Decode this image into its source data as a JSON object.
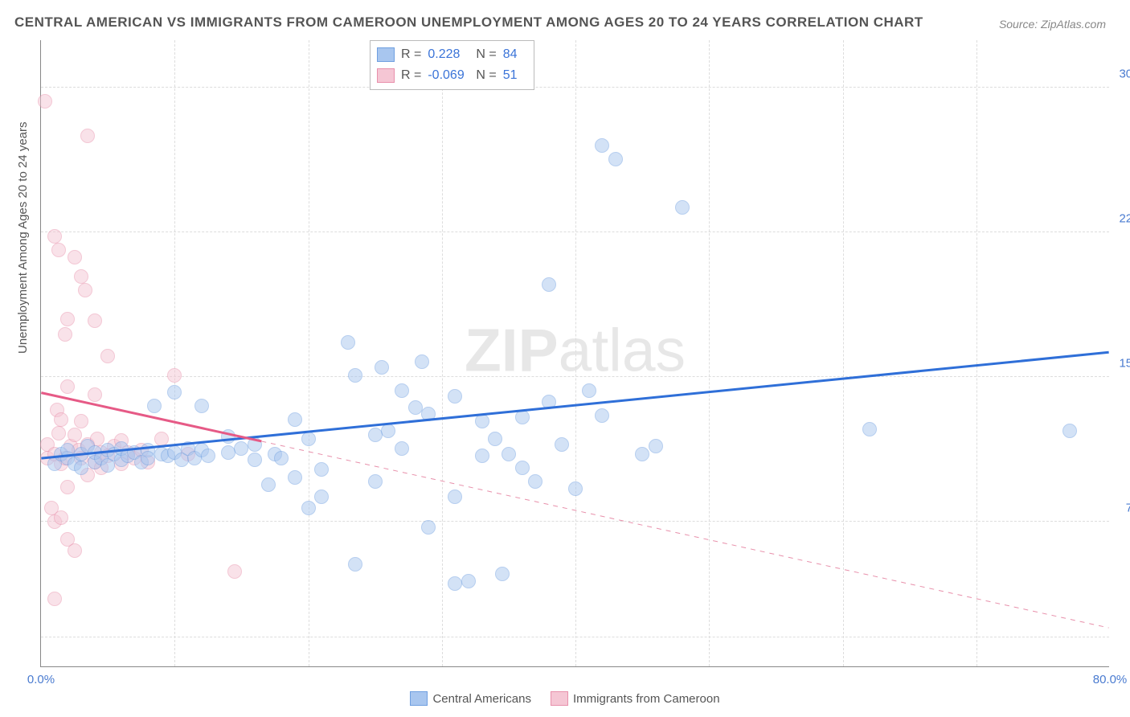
{
  "title": "CENTRAL AMERICAN VS IMMIGRANTS FROM CAMEROON UNEMPLOYMENT AMONG AGES 20 TO 24 YEARS CORRELATION CHART",
  "source": "Source: ZipAtlas.com",
  "watermark_bold": "ZIP",
  "watermark_rest": "atlas",
  "y_axis_title": "Unemployment Among Ages 20 to 24 years",
  "chart": {
    "type": "scatter",
    "xlim": [
      0,
      80
    ],
    "ylim": [
      0,
      32.5
    ],
    "xticks": [
      {
        "val": 0,
        "label": "0.0%"
      },
      {
        "val": 80,
        "label": "80.0%"
      }
    ],
    "yticks": [
      {
        "val": 7.5,
        "label": "7.5%"
      },
      {
        "val": 15,
        "label": "15.0%"
      },
      {
        "val": 22.5,
        "label": "22.5%"
      },
      {
        "val": 30,
        "label": "30.0%"
      }
    ],
    "x_gridlines": [
      10,
      20,
      30,
      40,
      50,
      60,
      70
    ],
    "y_gridlines": [
      1.5,
      7.5,
      15,
      22.5,
      30
    ],
    "background_color": "#ffffff",
    "grid_color": "#dddddd",
    "marker_radius": 9,
    "marker_opacity": 0.5,
    "line_width": 3,
    "series": [
      {
        "name": "Central Americans",
        "color_fill": "#a8c6ef",
        "color_stroke": "#6f9fe0",
        "line_color": "#2f6fd8",
        "R": "0.228",
        "N": "84",
        "regression": {
          "x1": 0,
          "y1": 10.8,
          "x2": 80,
          "y2": 16.3,
          "dash": false,
          "extrap_x1": 21,
          "extrap_dash_after": false
        },
        "points": [
          [
            1,
            10.5
          ],
          [
            1.5,
            11
          ],
          [
            2,
            10.8
          ],
          [
            2,
            11.2
          ],
          [
            2.5,
            10.5
          ],
          [
            3,
            11
          ],
          [
            3,
            10.3
          ],
          [
            3.5,
            11.4
          ],
          [
            4,
            10.6
          ],
          [
            4,
            11.1
          ],
          [
            4.5,
            10.8
          ],
          [
            5,
            11.2
          ],
          [
            5,
            10.4
          ],
          [
            5.5,
            11
          ],
          [
            6,
            10.7
          ],
          [
            6,
            11.3
          ],
          [
            6.5,
            10.9
          ],
          [
            7,
            11.1
          ],
          [
            7.5,
            10.6
          ],
          [
            8,
            11.2
          ],
          [
            8,
            10.8
          ],
          [
            8.5,
            13.5
          ],
          [
            9,
            11
          ],
          [
            9.5,
            10.9
          ],
          [
            10,
            14.2
          ],
          [
            10,
            11.1
          ],
          [
            10.5,
            10.7
          ],
          [
            11,
            11.3
          ],
          [
            11.5,
            10.8
          ],
          [
            12,
            11.2
          ],
          [
            12,
            13.5
          ],
          [
            12.5,
            10.9
          ],
          [
            14,
            11.1
          ],
          [
            14,
            11.9
          ],
          [
            15,
            11.3
          ],
          [
            16,
            10.7
          ],
          [
            16,
            11.5
          ],
          [
            17,
            9.4
          ],
          [
            17.5,
            11
          ],
          [
            18,
            10.8
          ],
          [
            19,
            12.8
          ],
          [
            19,
            9.8
          ],
          [
            20,
            8.2
          ],
          [
            20,
            11.8
          ],
          [
            21,
            10.2
          ],
          [
            21,
            8.8
          ],
          [
            23,
            16.8
          ],
          [
            23.5,
            5.3
          ],
          [
            23.5,
            15.1
          ],
          [
            25,
            9.6
          ],
          [
            25,
            12
          ],
          [
            25.5,
            15.5
          ],
          [
            26,
            12.2
          ],
          [
            27,
            14.3
          ],
          [
            27,
            11.3
          ],
          [
            28,
            13.4
          ],
          [
            28.5,
            15.8
          ],
          [
            29,
            7.2
          ],
          [
            29,
            13.1
          ],
          [
            31,
            14.0
          ],
          [
            31,
            8.8
          ],
          [
            31,
            4.3
          ],
          [
            32,
            4.4
          ],
          [
            33,
            10.9
          ],
          [
            33,
            12.7
          ],
          [
            34,
            11.8
          ],
          [
            34.5,
            4.8
          ],
          [
            35,
            11
          ],
          [
            36,
            10.3
          ],
          [
            37,
            9.6
          ],
          [
            38,
            13.7
          ],
          [
            38,
            19.8
          ],
          [
            39,
            11.5
          ],
          [
            41,
            14.3
          ],
          [
            42,
            27.0
          ],
          [
            43,
            26.3
          ],
          [
            42,
            13
          ],
          [
            45,
            11
          ],
          [
            46,
            11.4
          ],
          [
            48,
            23.8
          ],
          [
            62,
            12.3
          ],
          [
            77,
            12.2
          ],
          [
            40,
            9.2
          ],
          [
            36,
            12.9
          ]
        ]
      },
      {
        "name": "Immigrants from Cameroon",
        "color_fill": "#f5c6d4",
        "color_stroke": "#e890ab",
        "line_color": "#e65a86",
        "R": "-0.069",
        "N": "51",
        "regression": {
          "x1": 0,
          "y1": 14.2,
          "x2": 80,
          "y2": 2.0,
          "dash": true,
          "solid_until_x": 16.5
        },
        "points": [
          [
            0.3,
            29.3
          ],
          [
            0.5,
            10.8
          ],
          [
            0.5,
            11.5
          ],
          [
            0.8,
            8.2
          ],
          [
            1,
            7.5
          ],
          [
            1,
            22.3
          ],
          [
            1,
            11
          ],
          [
            1.2,
            13.3
          ],
          [
            1.3,
            21.6
          ],
          [
            1.3,
            12.1
          ],
          [
            1.5,
            10.5
          ],
          [
            1.5,
            12.8
          ],
          [
            1.5,
            7.7
          ],
          [
            1.8,
            17.2
          ],
          [
            1.8,
            10.8
          ],
          [
            2,
            18.0
          ],
          [
            2,
            14.5
          ],
          [
            2,
            9.3
          ],
          [
            2,
            6.6
          ],
          [
            2.2,
            11.4
          ],
          [
            2.5,
            21.2
          ],
          [
            2.5,
            12.0
          ],
          [
            2.5,
            6.0
          ],
          [
            2.8,
            11.2
          ],
          [
            3,
            20.2
          ],
          [
            3,
            10.8
          ],
          [
            3,
            12.7
          ],
          [
            3.3,
            19.5
          ],
          [
            3.5,
            27.5
          ],
          [
            3.5,
            11.5
          ],
          [
            3.5,
            9.9
          ],
          [
            4,
            10.6
          ],
          [
            4,
            17.9
          ],
          [
            4,
            14.1
          ],
          [
            4.2,
            11.8
          ],
          [
            4.5,
            11.1
          ],
          [
            4.5,
            10.3
          ],
          [
            5,
            16.1
          ],
          [
            5,
            10.9
          ],
          [
            5.5,
            11.4
          ],
          [
            6,
            11.7
          ],
          [
            6,
            10.5
          ],
          [
            6.5,
            11.1
          ],
          [
            7,
            10.8
          ],
          [
            7.5,
            11.2
          ],
          [
            8,
            10.6
          ],
          [
            9,
            11.8
          ],
          [
            10,
            15.1
          ],
          [
            11,
            11.0
          ],
          [
            14.5,
            4.9
          ],
          [
            1,
            3.5
          ]
        ]
      }
    ]
  },
  "bottom_legend": [
    {
      "label": "Central Americans",
      "fill": "#a8c6ef",
      "stroke": "#6f9fe0"
    },
    {
      "label": "Immigrants from Cameroon",
      "fill": "#f5c6d4",
      "stroke": "#e890ab"
    }
  ]
}
